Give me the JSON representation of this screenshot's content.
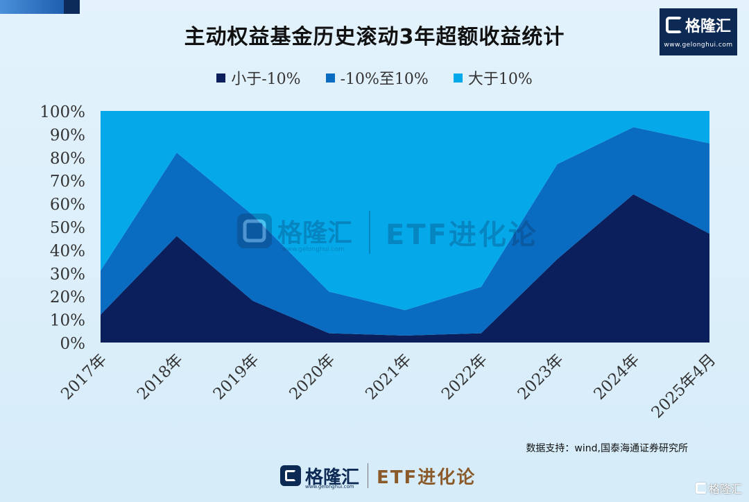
{
  "title": "主动权益基金历史滚动3年超额收益统计",
  "logo": {
    "brand": "格隆汇",
    "url": "www.gelonghui.com"
  },
  "watermark": {
    "brand": "格隆汇",
    "url": "www.gelonghui.com",
    "etf": "ETF进化论"
  },
  "source": "数据支持：wind,国泰海通证券研究所",
  "bottom_brand": {
    "brand": "格隆汇",
    "url": "www.gelonghui.com",
    "etf": "ETF进化论"
  },
  "corner_mark": "格隆汇",
  "colors": {
    "series_low": "#0a1f5c",
    "series_mid": "#0a6cc0",
    "series_high": "#05a9ea"
  },
  "chart_data": {
    "type": "area",
    "stacked": true,
    "title": "主动权益基金历史滚动3年超额收益统计",
    "categories": [
      "2017年",
      "2018年",
      "2019年",
      "2020年",
      "2021年",
      "2022年",
      "2023年",
      "2024年",
      "2025年4月"
    ],
    "series": [
      {
        "name": "小于-10%",
        "values": [
          12,
          46,
          18,
          4,
          3,
          4,
          36,
          64,
          47
        ]
      },
      {
        "name": "-10%至10%",
        "values": [
          19,
          36,
          37,
          18,
          11,
          20,
          41,
          29,
          39
        ]
      },
      {
        "name": "大于10%",
        "values": [
          69,
          18,
          45,
          78,
          86,
          76,
          23,
          7,
          14
        ]
      }
    ],
    "y_ticks": [
      "0%",
      "10%",
      "20%",
      "30%",
      "40%",
      "50%",
      "60%",
      "70%",
      "80%",
      "90%",
      "100%"
    ],
    "ylim": [
      0,
      100
    ],
    "legend_position": "top",
    "grid": false
  }
}
